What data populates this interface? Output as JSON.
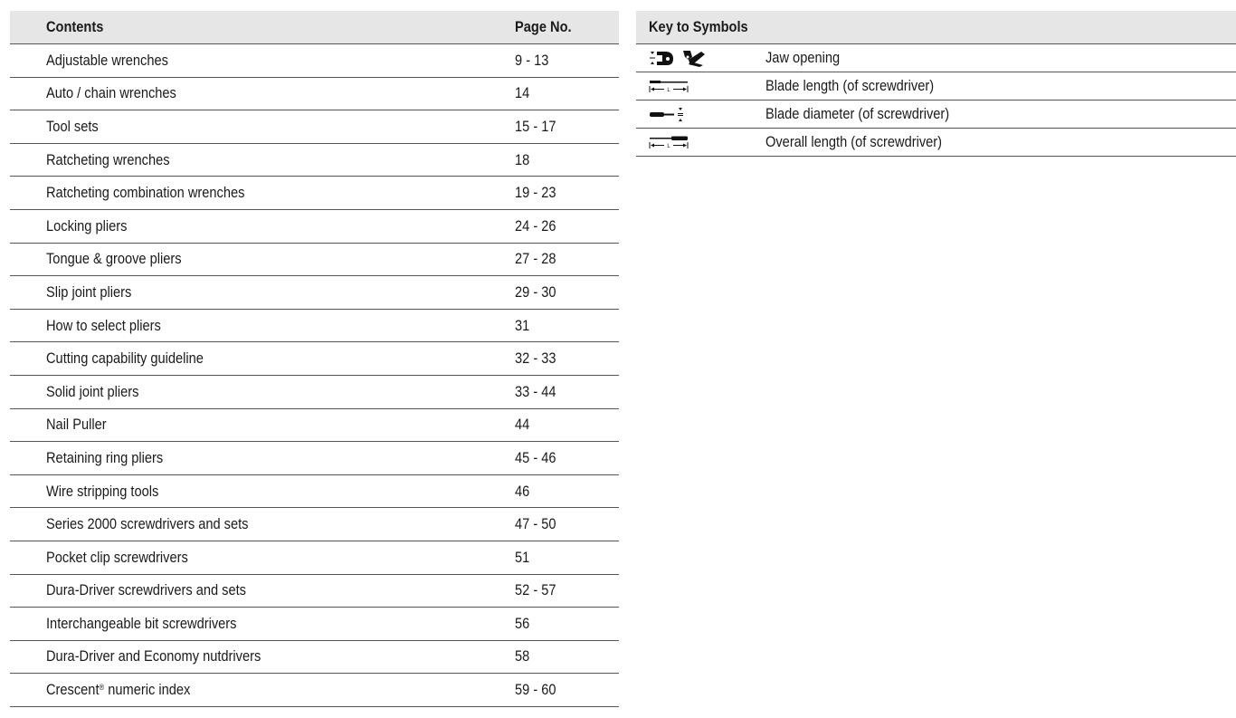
{
  "contents": {
    "header": {
      "title": "Contents",
      "page_label": "Page No."
    },
    "rows": [
      {
        "title": "Adjustable wrenches",
        "pages": "9 - 13"
      },
      {
        "title": "Auto / chain wrenches",
        "pages": "14"
      },
      {
        "title": "Tool sets",
        "pages": "15 - 17"
      },
      {
        "title": "Ratcheting  wrenches",
        "pages": "18"
      },
      {
        "title": "Ratcheting combination wrenches",
        "pages": "19 - 23"
      },
      {
        "title": "Locking pliers",
        "pages": "24 - 26"
      },
      {
        "title": "Tongue & groove pliers",
        "pages": "27 - 28"
      },
      {
        "title": "Slip joint pliers",
        "pages": "29 - 30"
      },
      {
        "title": "How to select pliers",
        "pages": "31"
      },
      {
        "title": "Cutting capability guideline",
        "pages": "32 - 33"
      },
      {
        "title": "Solid joint pliers",
        "pages": "33 - 44"
      },
      {
        "title": "Nail Puller",
        "pages": "44"
      },
      {
        "title": "Retaining ring pliers",
        "pages": "45 - 46"
      },
      {
        "title": "Wire stripping tools",
        "pages": "46"
      },
      {
        "title": "Series 2000 screwdrivers and sets",
        "pages": "47 - 50"
      },
      {
        "title": "Pocket clip screwdrivers",
        "pages": "51"
      },
      {
        "title": "Dura-Driver screwdrivers and sets",
        "pages": "52 - 57"
      },
      {
        "title": "Interchangeable bit screwdrivers",
        "pages": "56"
      },
      {
        "title": "Dura-Driver and Economy nutdrivers",
        "pages": "58"
      },
      {
        "title": "Crescent",
        "title_sup": "®",
        "title_after": " numeric index",
        "pages": "59 - 60"
      }
    ]
  },
  "key": {
    "header": {
      "title": "Key to Symbols"
    },
    "rows": [
      {
        "icon": "jaw-opening-icon",
        "description": "Jaw opening"
      },
      {
        "icon": "blade-length-icon",
        "description": "Blade length (of screwdriver)"
      },
      {
        "icon": "blade-diameter-icon",
        "description": "Blade diameter (of screwdriver)"
      },
      {
        "icon": "overall-length-icon",
        "description": "Overall length (of screwdriver)"
      }
    ]
  }
}
